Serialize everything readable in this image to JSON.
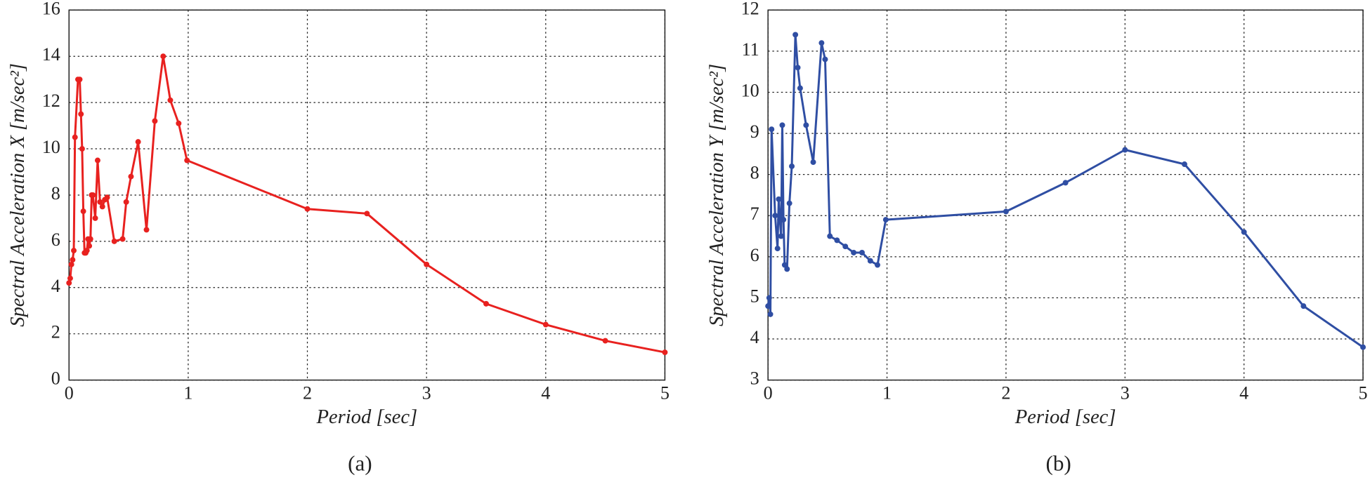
{
  "chart_data": [
    {
      "type": "line",
      "caption": "(a)",
      "xlabel": "Period [sec]",
      "ylabel": "Spectral Acceleration X [m/sec²]",
      "x": [
        0.0,
        0.01,
        0.02,
        0.03,
        0.04,
        0.05,
        0.075,
        0.09,
        0.1,
        0.11,
        0.12,
        0.13,
        0.14,
        0.15,
        0.16,
        0.17,
        0.18,
        0.19,
        0.2,
        0.22,
        0.24,
        0.26,
        0.28,
        0.3,
        0.32,
        0.38,
        0.45,
        0.48,
        0.52,
        0.58,
        0.65,
        0.72,
        0.79,
        0.85,
        0.92,
        0.99,
        2.0,
        2.5,
        3.0,
        3.5,
        4.0,
        4.5,
        5.0
      ],
      "values": [
        4.2,
        4.4,
        5.0,
        5.2,
        5.6,
        10.5,
        13.0,
        13.0,
        11.5,
        10.0,
        7.3,
        5.5,
        5.5,
        5.6,
        6.1,
        5.8,
        6.1,
        8.0,
        8.0,
        7.0,
        9.5,
        7.7,
        7.5,
        7.8,
        7.9,
        6.0,
        6.1,
        7.7,
        8.8,
        10.3,
        6.5,
        11.2,
        14.0,
        12.1,
        11.1,
        9.5,
        7.4,
        7.2,
        5.0,
        3.3,
        2.4,
        1.7,
        1.2
      ],
      "color": "#e8211f",
      "xlim": [
        0,
        5
      ],
      "xticks": [
        0,
        1,
        2,
        3,
        4,
        5
      ],
      "ylim": [
        0,
        16
      ],
      "yticks": [
        0,
        2,
        4,
        6,
        8,
        10,
        12,
        14,
        16
      ],
      "grid": true
    },
    {
      "type": "line",
      "caption": "(b)",
      "xlabel": "Period [sec]",
      "ylabel": "Spectral Acceleration Y [m/sec²]",
      "x": [
        0.0,
        0.01,
        0.02,
        0.03,
        0.06,
        0.08,
        0.09,
        0.1,
        0.11,
        0.12,
        0.13,
        0.14,
        0.16,
        0.18,
        0.2,
        0.23,
        0.25,
        0.27,
        0.32,
        0.38,
        0.45,
        0.48,
        0.52,
        0.58,
        0.65,
        0.72,
        0.79,
        0.86,
        0.92,
        0.99,
        2.0,
        2.5,
        3.0,
        3.5,
        4.0,
        4.5,
        5.0
      ],
      "values": [
        4.8,
        5.0,
        4.6,
        9.1,
        7.0,
        6.2,
        7.4,
        6.9,
        6.5,
        9.2,
        6.9,
        5.8,
        5.7,
        7.3,
        8.2,
        11.4,
        10.6,
        10.1,
        9.2,
        8.3,
        11.2,
        10.8,
        6.5,
        6.4,
        6.25,
        6.1,
        6.1,
        5.9,
        5.8,
        6.9,
        7.1,
        7.8,
        8.6,
        8.25,
        6.6,
        4.8,
        3.8
      ],
      "color": "#2f4ea3",
      "xlim": [
        0,
        5
      ],
      "xticks": [
        0,
        1,
        2,
        3,
        4,
        5
      ],
      "ylim": [
        3,
        12
      ],
      "yticks": [
        3,
        4,
        5,
        6,
        7,
        8,
        9,
        10,
        11,
        12
      ],
      "grid": true
    }
  ]
}
